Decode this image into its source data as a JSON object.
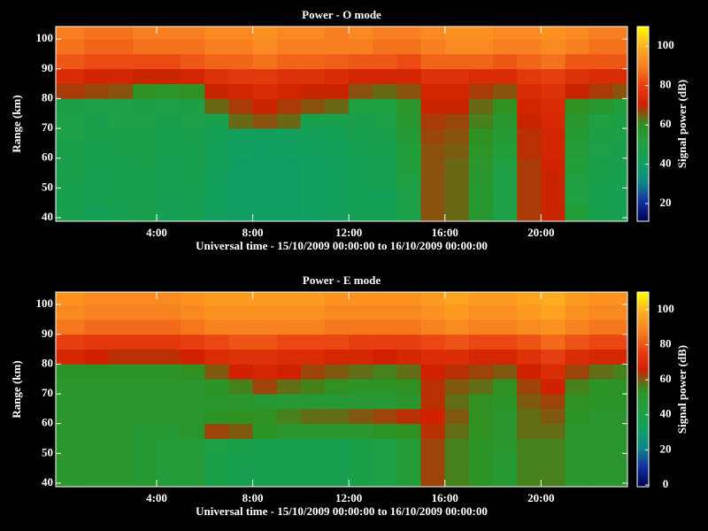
{
  "chart_data": [
    {
      "type": "heatmap",
      "title": "Power - O mode",
      "xlabel": "Universal time - 15/10/2009 00:00:00 to 16/10/2009 00:00:00",
      "ylabel": "Range (km)",
      "colorbar_label": "Signal power (dB)",
      "xbins": [
        -0.2,
        1,
        2,
        3,
        4,
        5,
        6,
        7,
        8,
        9,
        10,
        11,
        12,
        13,
        14,
        15,
        16,
        17,
        18,
        19,
        20,
        21,
        22,
        23,
        23.6
      ],
      "ybins": [
        38.8,
        45,
        50,
        55,
        60,
        65,
        70,
        75,
        80,
        85,
        90,
        95,
        100,
        104.2
      ],
      "values": [
        [
          46,
          44,
          45,
          47,
          44,
          45,
          42,
          40,
          40,
          40,
          41,
          42,
          44,
          44,
          48,
          66,
          64,
          56,
          48,
          68,
          70,
          52,
          46,
          45
        ],
        [
          46,
          45,
          46,
          46,
          45,
          45,
          42,
          40,
          40,
          40,
          41,
          42,
          44,
          44,
          48,
          66,
          64,
          56,
          48,
          68,
          70,
          50,
          46,
          45
        ],
        [
          47,
          45,
          46,
          46,
          45,
          46,
          42,
          40,
          40,
          40,
          41,
          42,
          44,
          45,
          50,
          66,
          64,
          56,
          48,
          68,
          70,
          50,
          47,
          46
        ],
        [
          47,
          46,
          46,
          47,
          45,
          46,
          43,
          40,
          40,
          40,
          41,
          42,
          44,
          45,
          52,
          66,
          64,
          57,
          50,
          68,
          71,
          52,
          47,
          46
        ],
        [
          47,
          46,
          47,
          47,
          46,
          46,
          43,
          41,
          40,
          41,
          42,
          43,
          45,
          46,
          52,
          66,
          65,
          58,
          52,
          69,
          72,
          53,
          48,
          47
        ],
        [
          48,
          47,
          47,
          47,
          46,
          47,
          44,
          42,
          42,
          42,
          43,
          44,
          46,
          47,
          54,
          67,
          66,
          60,
          54,
          69,
          72,
          54,
          49,
          48
        ],
        [
          48,
          47,
          48,
          48,
          47,
          48,
          46,
          64,
          66,
          64,
          46,
          46,
          47,
          48,
          56,
          68,
          67,
          62,
          56,
          70,
          73,
          56,
          50,
          49
        ],
        [
          49,
          48,
          48,
          49,
          48,
          49,
          64,
          68,
          70,
          68,
          66,
          64,
          50,
          50,
          58,
          70,
          70,
          64,
          60,
          72,
          74,
          60,
          56,
          52
        ],
        [
          68,
          67,
          66,
          60,
          58,
          60,
          70,
          72,
          74,
          72,
          70,
          70,
          66,
          64,
          66,
          72,
          72,
          68,
          66,
          74,
          76,
          70,
          68,
          66
        ],
        [
          74,
          72,
          72,
          70,
          70,
          72,
          76,
          78,
          78,
          76,
          76,
          74,
          72,
          72,
          72,
          76,
          76,
          74,
          74,
          78,
          80,
          76,
          74,
          74
        ],
        [
          84,
          82,
          82,
          82,
          82,
          84,
          86,
          86,
          88,
          86,
          86,
          85,
          84,
          84,
          82,
          86,
          86,
          86,
          84,
          86,
          88,
          84,
          84,
          84
        ],
        [
          88,
          86,
          86,
          88,
          88,
          88,
          90,
          90,
          92,
          90,
          90,
          90,
          90,
          88,
          88,
          90,
          92,
          92,
          90,
          90,
          92,
          90,
          88,
          88
        ],
        [
          90,
          88,
          88,
          90,
          90,
          90,
          92,
          92,
          94,
          92,
          92,
          90,
          92,
          90,
          90,
          92,
          94,
          94,
          92,
          92,
          94,
          92,
          90,
          90
        ]
      ],
      "xlim": [
        -0.2,
        23.6
      ],
      "ylim": [
        38.8,
        104.2
      ],
      "xticks": [
        {
          "value": 4,
          "label": "4:00"
        },
        {
          "value": 8,
          "label": "8:00"
        },
        {
          "value": 12,
          "label": "12:00"
        },
        {
          "value": 16,
          "label": "16:00"
        },
        {
          "value": 20,
          "label": "20:00"
        }
      ],
      "yticks": [
        40,
        50,
        60,
        70,
        80,
        90,
        100
      ],
      "clim": [
        11,
        110
      ],
      "cticks": [
        20,
        40,
        60,
        80,
        100
      ],
      "colormap": [
        "#000050",
        "#1030a0",
        "#108888",
        "#10a060",
        "#20a040",
        "#309020",
        "#d02000",
        "#e84010",
        "#f88020",
        "#ffb020",
        "#ffff00"
      ]
    },
    {
      "type": "heatmap",
      "title": "Power - E mode",
      "xlabel": "Universal time - 15/10/2009 00:00:00 to 16/10/2009 00:00:00",
      "ylabel": "Range (km)",
      "colorbar_label": "Signal power (dB)",
      "xbins": [
        -0.2,
        1,
        2,
        3,
        4,
        5,
        6,
        7,
        8,
        9,
        10,
        11,
        12,
        13,
        14,
        15,
        16,
        17,
        18,
        19,
        20,
        21,
        22,
        23,
        23.6
      ],
      "ybins": [
        38.8,
        45,
        50,
        55,
        60,
        65,
        70,
        75,
        80,
        85,
        90,
        95,
        100,
        104.2
      ],
      "values": [
        [
          50,
          50,
          50,
          48,
          46,
          46,
          40,
          38,
          38,
          38,
          38,
          38,
          40,
          42,
          46,
          62,
          56,
          52,
          48,
          56,
          56,
          50,
          50,
          50
        ],
        [
          50,
          50,
          50,
          48,
          46,
          46,
          40,
          38,
          38,
          38,
          38,
          38,
          40,
          42,
          46,
          62,
          56,
          52,
          48,
          56,
          56,
          50,
          50,
          50
        ],
        [
          50,
          50,
          50,
          48,
          46,
          46,
          42,
          40,
          38,
          38,
          38,
          38,
          40,
          42,
          46,
          62,
          56,
          52,
          50,
          56,
          56,
          50,
          50,
          50
        ],
        [
          50,
          50,
          50,
          48,
          48,
          50,
          62,
          60,
          52,
          50,
          50,
          50,
          50,
          52,
          54,
          64,
          58,
          54,
          50,
          58,
          58,
          50,
          50,
          50
        ],
        [
          50,
          50,
          50,
          50,
          50,
          50,
          52,
          54,
          54,
          56,
          58,
          58,
          60,
          62,
          64,
          66,
          60,
          54,
          50,
          58,
          60,
          52,
          50,
          50
        ],
        [
          50,
          50,
          50,
          50,
          50,
          50,
          50,
          50,
          48,
          48,
          48,
          48,
          48,
          48,
          50,
          64,
          58,
          54,
          52,
          60,
          62,
          54,
          52,
          52
        ],
        [
          50,
          50,
          50,
          50,
          50,
          50,
          52,
          56,
          62,
          58,
          56,
          54,
          52,
          52,
          54,
          64,
          60,
          58,
          54,
          62,
          66,
          56,
          52,
          52
        ],
        [
          52,
          52,
          52,
          52,
          52,
          54,
          60,
          66,
          68,
          66,
          62,
          60,
          58,
          56,
          58,
          66,
          64,
          62,
          60,
          66,
          70,
          62,
          58,
          56
        ],
        [
          68,
          66,
          64,
          64,
          64,
          66,
          70,
          72,
          72,
          70,
          70,
          68,
          68,
          66,
          68,
          70,
          70,
          68,
          68,
          72,
          76,
          70,
          68,
          68
        ],
        [
          76,
          74,
          74,
          74,
          74,
          76,
          78,
          80,
          80,
          78,
          78,
          78,
          76,
          76,
          76,
          78,
          80,
          78,
          78,
          80,
          84,
          80,
          78,
          78
        ],
        [
          86,
          84,
          84,
          84,
          84,
          86,
          88,
          88,
          88,
          88,
          88,
          86,
          86,
          86,
          86,
          88,
          90,
          88,
          88,
          90,
          92,
          88,
          86,
          86
        ],
        [
          90,
          88,
          88,
          88,
          88,
          90,
          92,
          92,
          92,
          92,
          92,
          90,
          90,
          90,
          90,
          92,
          94,
          92,
          92,
          94,
          96,
          92,
          90,
          90
        ],
        [
          92,
          90,
          90,
          90,
          90,
          92,
          94,
          94,
          94,
          94,
          94,
          92,
          92,
          92,
          92,
          94,
          96,
          94,
          94,
          96,
          98,
          94,
          92,
          92
        ]
      ],
      "xlim": [
        -0.2,
        23.6
      ],
      "ylim": [
        38.8,
        104.2
      ],
      "xticks": [
        {
          "value": 4,
          "label": "4:00"
        },
        {
          "value": 8,
          "label": "8:00"
        },
        {
          "value": 12,
          "label": "12:00"
        },
        {
          "value": 16,
          "label": "16:00"
        },
        {
          "value": 20,
          "label": "20:00"
        }
      ],
      "yticks": [
        40,
        50,
        60,
        70,
        80,
        90,
        100
      ],
      "clim": [
        -1,
        110
      ],
      "cticks": [
        0,
        20,
        40,
        60,
        80,
        100
      ],
      "colormap": [
        "#000050",
        "#1030a0",
        "#108888",
        "#10a060",
        "#20a040",
        "#309020",
        "#d02000",
        "#e84010",
        "#f88020",
        "#ffb020",
        "#ffff00"
      ]
    }
  ]
}
